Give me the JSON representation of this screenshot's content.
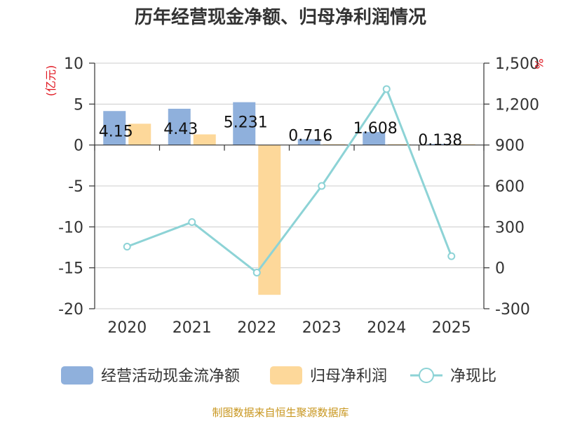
{
  "chart_data": {
    "type": "bar",
    "title": "历年经营现金净额、归母净利润情况",
    "categories": [
      "2020",
      "2021",
      "2022",
      "2023",
      "2024",
      "2025"
    ],
    "y_left": {
      "unit": "(亿元)",
      "ylim": [
        -20,
        10
      ],
      "ticks": [
        10,
        5,
        0,
        -5,
        -10,
        -15,
        -20
      ]
    },
    "y_right": {
      "unit": "%",
      "ylim": [
        -300,
        1500
      ],
      "ticks": [
        1500,
        1200,
        900,
        600,
        300,
        0,
        -300
      ],
      "tick_labels": [
        "1,500",
        "1,200",
        "900",
        "600",
        "300",
        "0",
        "-300"
      ]
    },
    "series": [
      {
        "name": "经营活动现金流净额",
        "type": "bar",
        "axis": "left",
        "color": "#8fb0dc",
        "values": [
          4.15,
          4.43,
          5.231,
          0.716,
          1.608,
          0.138
        ],
        "labels": [
          "4.15",
          "4.43",
          "5.231",
          "0.716",
          "1.608",
          "0.138"
        ]
      },
      {
        "name": "归母净利润",
        "type": "bar",
        "axis": "left",
        "color": "#fdd89a",
        "values": [
          2.6,
          1.3,
          -18.3,
          0.1,
          0.1,
          0.1
        ]
      },
      {
        "name": "净现比",
        "type": "line",
        "axis": "right",
        "color": "#8dd3d6",
        "values": [
          155,
          335,
          -35,
          600,
          1310,
          85
        ]
      }
    ],
    "grid": true,
    "legend": "bottom"
  },
  "source": "制图数据来自恒生聚源数据库"
}
